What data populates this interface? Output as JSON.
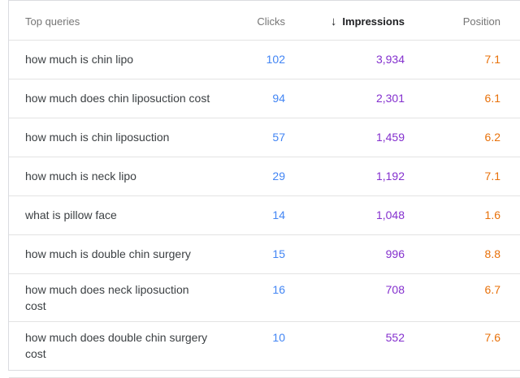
{
  "table": {
    "columns": {
      "queries": "Top queries",
      "clicks": "Clicks",
      "impressions": "Impressions",
      "position": "Position"
    },
    "sort": {
      "column": "Impressions",
      "direction": "descending",
      "arrow_glyph": "↓"
    },
    "colors": {
      "clicks": "#4285f4",
      "impressions": "#8430ce",
      "position": "#e8710a"
    },
    "rows": [
      {
        "query_lines": [
          "how much is chin lipo"
        ],
        "clicks": "102",
        "impressions": "3,934",
        "position": "7.1"
      },
      {
        "query_lines": [
          "how much does chin liposuction cost"
        ],
        "clicks": "94",
        "impressions": "2,301",
        "position": "6.1"
      },
      {
        "query_lines": [
          "how much is chin liposuction"
        ],
        "clicks": "57",
        "impressions": "1,459",
        "position": "6.2"
      },
      {
        "query_lines": [
          "how much is neck lipo"
        ],
        "clicks": "29",
        "impressions": "1,192",
        "position": "7.1"
      },
      {
        "query_lines": [
          "what is pillow face"
        ],
        "clicks": "14",
        "impressions": "1,048",
        "position": "1.6"
      },
      {
        "query_lines": [
          "how much is double chin surgery"
        ],
        "clicks": "15",
        "impressions": "996",
        "position": "8.8"
      },
      {
        "query_lines": [
          "how much does neck liposuction",
          "cost"
        ],
        "clicks": "16",
        "impressions": "708",
        "position": "6.7"
      },
      {
        "query_lines": [
          "how much does double chin surgery",
          "cost"
        ],
        "clicks": "10",
        "impressions": "552",
        "position": "7.6"
      }
    ]
  }
}
